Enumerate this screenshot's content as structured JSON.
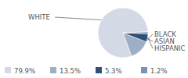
{
  "chart_data": {
    "type": "pie",
    "categories": [
      "WHITE",
      "BLACK",
      "ASIAN",
      "HISPANIC"
    ],
    "values": [
      79.9,
      13.5,
      5.3,
      1.2
    ],
    "value_labels": [
      "79.9%",
      "13.5%",
      "5.3%",
      "1.2%"
    ],
    "colors": [
      "#d3dae6",
      "#9eaec4",
      "#2f4f75",
      "#7a93b3"
    ],
    "legend": "bottom"
  }
}
